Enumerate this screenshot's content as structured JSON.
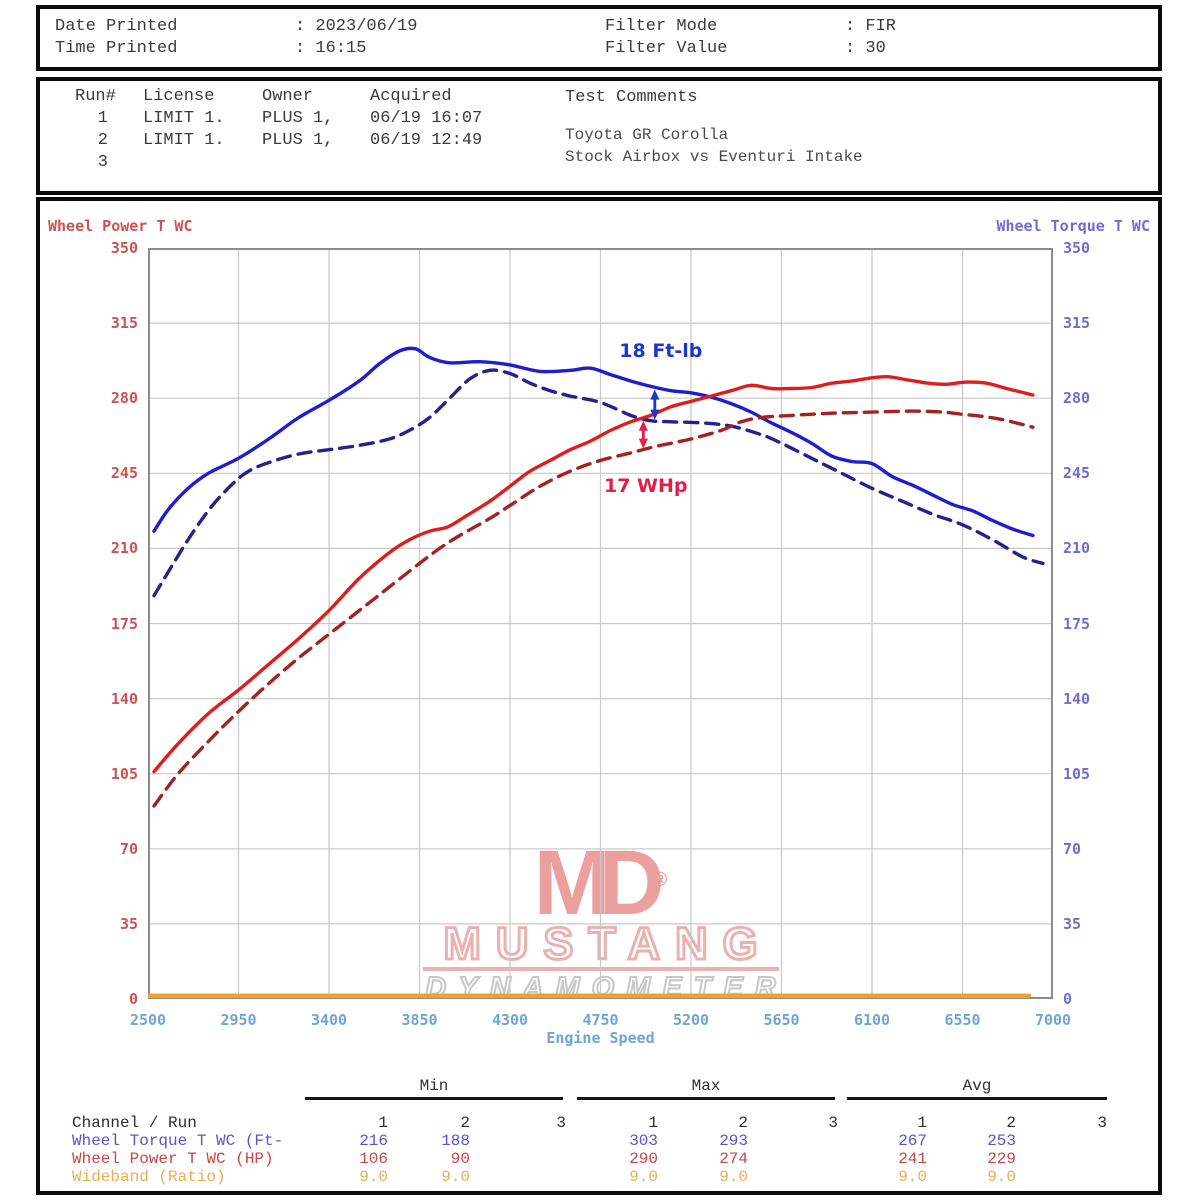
{
  "header": {
    "date_label": "Date Printed",
    "date_value": ": 2023/06/19",
    "time_label": "Time Printed",
    "time_value": ": 16:15",
    "filter_mode_label": "Filter Mode",
    "filter_mode_value": ": FIR",
    "filter_value_label": "Filter Value",
    "filter_value_value": ": 30"
  },
  "run_table": {
    "col_run": "Run#",
    "col_license": "License",
    "col_owner": "Owner",
    "col_acquired": "Acquired",
    "runs": [
      {
        "num": "1",
        "license": "LIMIT 1.",
        "owner": "PLUS 1,",
        "acquired": "06/19 16:07"
      },
      {
        "num": "2",
        "license": "LIMIT 1.",
        "owner": "PLUS 1,",
        "acquired": "06/19 12:49"
      },
      {
        "num": "3",
        "license": "",
        "owner": "",
        "acquired": ""
      }
    ],
    "comments_title": "Test Comments",
    "comments": [
      "Toyota GR Corolla",
      "Stock Airbox vs Eventuri Intake"
    ]
  },
  "chart_data": {
    "type": "line",
    "left_axis_label": "Wheel Power T WC",
    "right_axis_label": "Wheel Torque T WC",
    "xlabel": "Engine Speed",
    "xlim": [
      2500,
      7000
    ],
    "ylim": [
      0,
      350
    ],
    "x_ticks": [
      2500,
      2950,
      3400,
      3850,
      4300,
      4750,
      5200,
      5650,
      6100,
      6550,
      7000
    ],
    "y_ticks": [
      0,
      35,
      70,
      105,
      140,
      175,
      210,
      245,
      280,
      315,
      350
    ],
    "grid": true,
    "colors": {
      "left_axis": "#cc5353",
      "right_axis": "#6e6ed2",
      "x_axis": "#6fa5d6",
      "grid": "#c9c9c9",
      "frame": "#8c8c8c"
    },
    "series": [
      {
        "name": "wheel-torque-run1",
        "legend": "Wheel Torque T WC Run 1",
        "style": "solid",
        "color": "#1d1dd2",
        "width": 3.4,
        "points": [
          [
            2530,
            218
          ],
          [
            2600,
            228
          ],
          [
            2700,
            238
          ],
          [
            2800,
            245
          ],
          [
            2950,
            252
          ],
          [
            3100,
            261
          ],
          [
            3250,
            271
          ],
          [
            3400,
            279
          ],
          [
            3550,
            288
          ],
          [
            3650,
            296
          ],
          [
            3750,
            302
          ],
          [
            3830,
            303
          ],
          [
            3900,
            299
          ],
          [
            4000,
            296.5
          ],
          [
            4150,
            297
          ],
          [
            4300,
            295.5
          ],
          [
            4450,
            292.5
          ],
          [
            4600,
            293
          ],
          [
            4700,
            294
          ],
          [
            4800,
            291
          ],
          [
            4900,
            288
          ],
          [
            5000,
            285.5
          ],
          [
            5100,
            283.5
          ],
          [
            5200,
            282.5
          ],
          [
            5300,
            280.5
          ],
          [
            5400,
            277.5
          ],
          [
            5500,
            273.5
          ],
          [
            5600,
            268.5
          ],
          [
            5700,
            264
          ],
          [
            5800,
            259
          ],
          [
            5900,
            253
          ],
          [
            6000,
            250.5
          ],
          [
            6100,
            249.5
          ],
          [
            6200,
            243.5
          ],
          [
            6300,
            239.5
          ],
          [
            6400,
            235
          ],
          [
            6500,
            230.5
          ],
          [
            6600,
            227.5
          ],
          [
            6700,
            223
          ],
          [
            6800,
            219
          ],
          [
            6900,
            216
          ]
        ]
      },
      {
        "name": "wheel-torque-run2",
        "legend": "Wheel Torque T WC Run 2",
        "style": "dashed",
        "color": "#23238e",
        "width": 3.4,
        "points": [
          [
            2530,
            188
          ],
          [
            2620,
            202
          ],
          [
            2720,
            217
          ],
          [
            2820,
            230
          ],
          [
            2920,
            240
          ],
          [
            3000,
            246
          ],
          [
            3100,
            250
          ],
          [
            3250,
            254
          ],
          [
            3400,
            256
          ],
          [
            3550,
            258
          ],
          [
            3700,
            261
          ],
          [
            3800,
            265
          ],
          [
            3900,
            271
          ],
          [
            4000,
            280
          ],
          [
            4100,
            289
          ],
          [
            4200,
            293
          ],
          [
            4300,
            291.5
          ],
          [
            4400,
            287
          ],
          [
            4500,
            283.5
          ],
          [
            4600,
            281
          ],
          [
            4750,
            278
          ],
          [
            4900,
            272
          ],
          [
            5000,
            269.5
          ],
          [
            5100,
            269
          ],
          [
            5250,
            268.5
          ],
          [
            5400,
            267
          ],
          [
            5550,
            263
          ],
          [
            5650,
            259
          ],
          [
            5800,
            252
          ],
          [
            5950,
            245
          ],
          [
            6100,
            238
          ],
          [
            6250,
            232
          ],
          [
            6400,
            226
          ],
          [
            6550,
            221
          ],
          [
            6700,
            214
          ],
          [
            6850,
            206
          ],
          [
            6950,
            203
          ]
        ]
      },
      {
        "name": "wheel-power-run1",
        "legend": "Wheel Power T WC Run 1",
        "style": "solid",
        "color": "#e01d1d",
        "width": 3.4,
        "points": [
          [
            2530,
            106
          ],
          [
            2650,
            119
          ],
          [
            2800,
            133
          ],
          [
            2950,
            144
          ],
          [
            3100,
            156
          ],
          [
            3250,
            168
          ],
          [
            3400,
            181
          ],
          [
            3550,
            196
          ],
          [
            3700,
            208
          ],
          [
            3800,
            214
          ],
          [
            3900,
            218
          ],
          [
            3990,
            220
          ],
          [
            4080,
            225
          ],
          [
            4200,
            232
          ],
          [
            4300,
            239
          ],
          [
            4400,
            246
          ],
          [
            4500,
            251
          ],
          [
            4600,
            256
          ],
          [
            4700,
            260
          ],
          [
            4800,
            265
          ],
          [
            4900,
            269
          ],
          [
            5000,
            272
          ],
          [
            5100,
            276
          ],
          [
            5200,
            278.5
          ],
          [
            5300,
            281
          ],
          [
            5400,
            283.5
          ],
          [
            5500,
            286
          ],
          [
            5600,
            284.5
          ],
          [
            5700,
            284.5
          ],
          [
            5800,
            285
          ],
          [
            5900,
            287
          ],
          [
            6000,
            288
          ],
          [
            6100,
            289.5
          ],
          [
            6180,
            290
          ],
          [
            6280,
            288.5
          ],
          [
            6380,
            287
          ],
          [
            6470,
            286.5
          ],
          [
            6570,
            287.5
          ],
          [
            6670,
            287
          ],
          [
            6770,
            284.5
          ],
          [
            6900,
            281.5
          ]
        ]
      },
      {
        "name": "wheel-power-run2",
        "legend": "Wheel Power T WC Run 2",
        "style": "dashed",
        "color": "#a32222",
        "width": 3.4,
        "points": [
          [
            2530,
            90
          ],
          [
            2650,
            105
          ],
          [
            2800,
            120
          ],
          [
            2950,
            134
          ],
          [
            3100,
            147
          ],
          [
            3250,
            159
          ],
          [
            3400,
            170
          ],
          [
            3550,
            181
          ],
          [
            3700,
            192
          ],
          [
            3850,
            203
          ],
          [
            3950,
            210
          ],
          [
            4050,
            216
          ],
          [
            4200,
            224
          ],
          [
            4300,
            230
          ],
          [
            4450,
            239
          ],
          [
            4600,
            246
          ],
          [
            4750,
            251
          ],
          [
            4900,
            254.5
          ],
          [
            5000,
            257
          ],
          [
            5100,
            259
          ],
          [
            5200,
            261
          ],
          [
            5350,
            265
          ],
          [
            5450,
            269
          ],
          [
            5550,
            271
          ],
          [
            5700,
            272
          ],
          [
            5900,
            273
          ],
          [
            6100,
            273.5
          ],
          [
            6300,
            274
          ],
          [
            6450,
            273.5
          ],
          [
            6550,
            272.5
          ],
          [
            6650,
            271.5
          ],
          [
            6750,
            270
          ],
          [
            6900,
            266.5
          ]
        ]
      },
      {
        "name": "wideband-ratio",
        "legend": "Wideband (Ratio)",
        "style": "solid",
        "color": "#f1a22c",
        "width": 4.6,
        "points": [
          [
            2510,
            1.5
          ],
          [
            6880,
            1.5
          ]
        ]
      }
    ],
    "annotations": [
      {
        "text": "18 Ft-lb",
        "color": "#1d35cc",
        "x": 5050,
        "y": 302,
        "arrow": {
          "x": 5020,
          "y1": 284,
          "y2": 270
        }
      },
      {
        "text": "17 WHp",
        "color": "#e41e4b",
        "x": 4975,
        "y": 239,
        "arrow": {
          "x": 4963,
          "y1": 269.5,
          "y2": 256.5
        }
      }
    ]
  },
  "watermark": {
    "logo": "MD",
    "reg": "®",
    "line1": "MUSTANG",
    "line2": "DYNAMOMETER"
  },
  "stats": {
    "row_header": "Channel / Run",
    "groups": [
      "Min",
      "Max",
      "Avg"
    ],
    "run_headers": [
      "1",
      "2",
      "3"
    ],
    "header_color": "#2e2e2e",
    "channels": [
      {
        "label": "Wheel Torque T WC (Ft-",
        "color": "#5656cc",
        "min": [
          "216",
          "188",
          ""
        ],
        "max": [
          "303",
          "293",
          ""
        ],
        "avg": [
          "267",
          "253",
          ""
        ]
      },
      {
        "label": "Wheel Power T WC (HP)",
        "color": "#c44848",
        "min": [
          "106",
          "90",
          ""
        ],
        "max": [
          "290",
          "274",
          ""
        ],
        "avg": [
          "241",
          "229",
          ""
        ]
      },
      {
        "label": "Wideband (Ratio)",
        "color": "#e6ae55",
        "min": [
          "9.0",
          "9.0",
          ""
        ],
        "max": [
          "9.0",
          "9.0",
          ""
        ],
        "avg": [
          "9.0",
          "9.0",
          ""
        ]
      }
    ]
  }
}
